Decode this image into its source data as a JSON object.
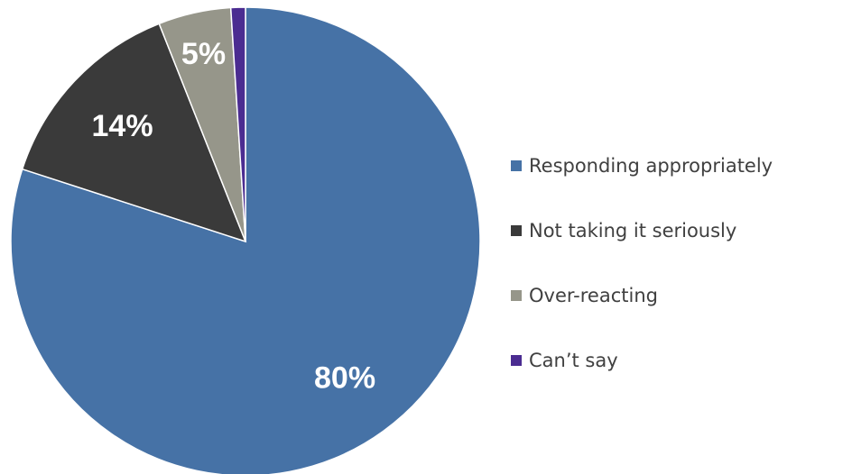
{
  "chart_data": {
    "type": "pie",
    "title": "",
    "categories": [
      "Responding appropriately",
      "Not taking it seriously",
      "Over-reacting",
      "Can’t say"
    ],
    "values": [
      80,
      14,
      5,
      1
    ],
    "data_labels": [
      "80%",
      "14%",
      "5%",
      ""
    ],
    "colors": [
      "#4672A6",
      "#3A3A3A",
      "#96968A",
      "#4B2C91"
    ],
    "legend_position": "right"
  }
}
